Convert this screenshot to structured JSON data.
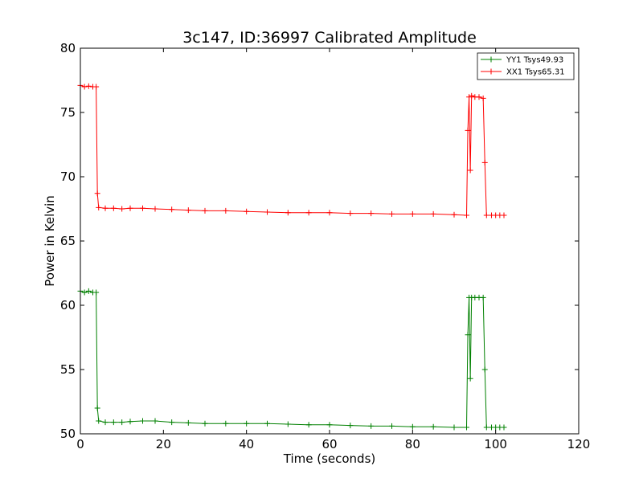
{
  "chart_data": {
    "type": "line",
    "title": "3c147, ID:36997 Calibrated Amplitude",
    "xlabel": "Time (seconds)",
    "ylabel": "Power in Kelvin",
    "xlim": [
      0,
      120
    ],
    "ylim": [
      50,
      80
    ],
    "x_ticks": [
      "0",
      "20",
      "40",
      "60",
      "80",
      "100",
      "120"
    ],
    "y_ticks": [
      "50",
      "55",
      "60",
      "65",
      "70",
      "75",
      "80"
    ],
    "grid": false,
    "legend_position": "top-right",
    "series": [
      {
        "name": "YY1 Tsys49.93",
        "color": "#008000",
        "marker": "+",
        "points": [
          [
            0.0,
            61.1
          ],
          [
            1.0,
            61.0
          ],
          [
            2.0,
            61.1
          ],
          [
            3.0,
            61.0
          ],
          [
            3.8,
            61.0
          ],
          [
            4.1,
            52.0
          ],
          [
            4.4,
            51.0
          ],
          [
            6.0,
            50.9
          ],
          [
            8.0,
            50.9
          ],
          [
            10.0,
            50.9
          ],
          [
            12.0,
            50.95
          ],
          [
            15.0,
            51.0
          ],
          [
            18.0,
            51.0
          ],
          [
            22.0,
            50.9
          ],
          [
            26.0,
            50.85
          ],
          [
            30.0,
            50.8
          ],
          [
            35.0,
            50.8
          ],
          [
            40.0,
            50.8
          ],
          [
            45.0,
            50.8
          ],
          [
            50.0,
            50.75
          ],
          [
            55.0,
            50.7
          ],
          [
            60.0,
            50.7
          ],
          [
            65.0,
            50.65
          ],
          [
            70.0,
            50.6
          ],
          [
            75.0,
            50.6
          ],
          [
            80.0,
            50.55
          ],
          [
            85.0,
            50.55
          ],
          [
            90.0,
            50.5
          ],
          [
            93.0,
            50.5
          ],
          [
            93.3,
            57.7
          ],
          [
            93.6,
            60.6
          ],
          [
            93.9,
            54.3
          ],
          [
            94.2,
            60.6
          ],
          [
            95.0,
            60.6
          ],
          [
            96.0,
            60.6
          ],
          [
            97.0,
            60.6
          ],
          [
            97.4,
            55.0
          ],
          [
            97.8,
            50.5
          ],
          [
            99.0,
            50.5
          ],
          [
            100.0,
            50.5
          ],
          [
            101.0,
            50.5
          ],
          [
            102.0,
            50.5
          ]
        ]
      },
      {
        "name": "XX1 Tsys65.31",
        "color": "#ff0000",
        "marker": "+",
        "points": [
          [
            0.0,
            77.1
          ],
          [
            1.0,
            77.0
          ],
          [
            2.0,
            77.05
          ],
          [
            3.0,
            77.0
          ],
          [
            3.8,
            77.0
          ],
          [
            4.1,
            68.7
          ],
          [
            4.4,
            67.6
          ],
          [
            6.0,
            67.55
          ],
          [
            8.0,
            67.55
          ],
          [
            10.0,
            67.5
          ],
          [
            12.0,
            67.55
          ],
          [
            15.0,
            67.55
          ],
          [
            18.0,
            67.5
          ],
          [
            22.0,
            67.45
          ],
          [
            26.0,
            67.4
          ],
          [
            30.0,
            67.35
          ],
          [
            35.0,
            67.35
          ],
          [
            40.0,
            67.3
          ],
          [
            45.0,
            67.25
          ],
          [
            50.0,
            67.2
          ],
          [
            55.0,
            67.2
          ],
          [
            60.0,
            67.2
          ],
          [
            65.0,
            67.15
          ],
          [
            70.0,
            67.15
          ],
          [
            75.0,
            67.1
          ],
          [
            80.0,
            67.1
          ],
          [
            85.0,
            67.1
          ],
          [
            90.0,
            67.05
          ],
          [
            93.0,
            67.0
          ],
          [
            93.3,
            73.6
          ],
          [
            93.6,
            76.2
          ],
          [
            93.9,
            70.5
          ],
          [
            94.2,
            76.3
          ],
          [
            95.0,
            76.2
          ],
          [
            96.0,
            76.2
          ],
          [
            97.0,
            76.1
          ],
          [
            97.4,
            71.1
          ],
          [
            97.8,
            67.0
          ],
          [
            99.0,
            67.0
          ],
          [
            100.0,
            67.0
          ],
          [
            101.0,
            67.0
          ],
          [
            102.0,
            67.0
          ]
        ]
      }
    ]
  }
}
